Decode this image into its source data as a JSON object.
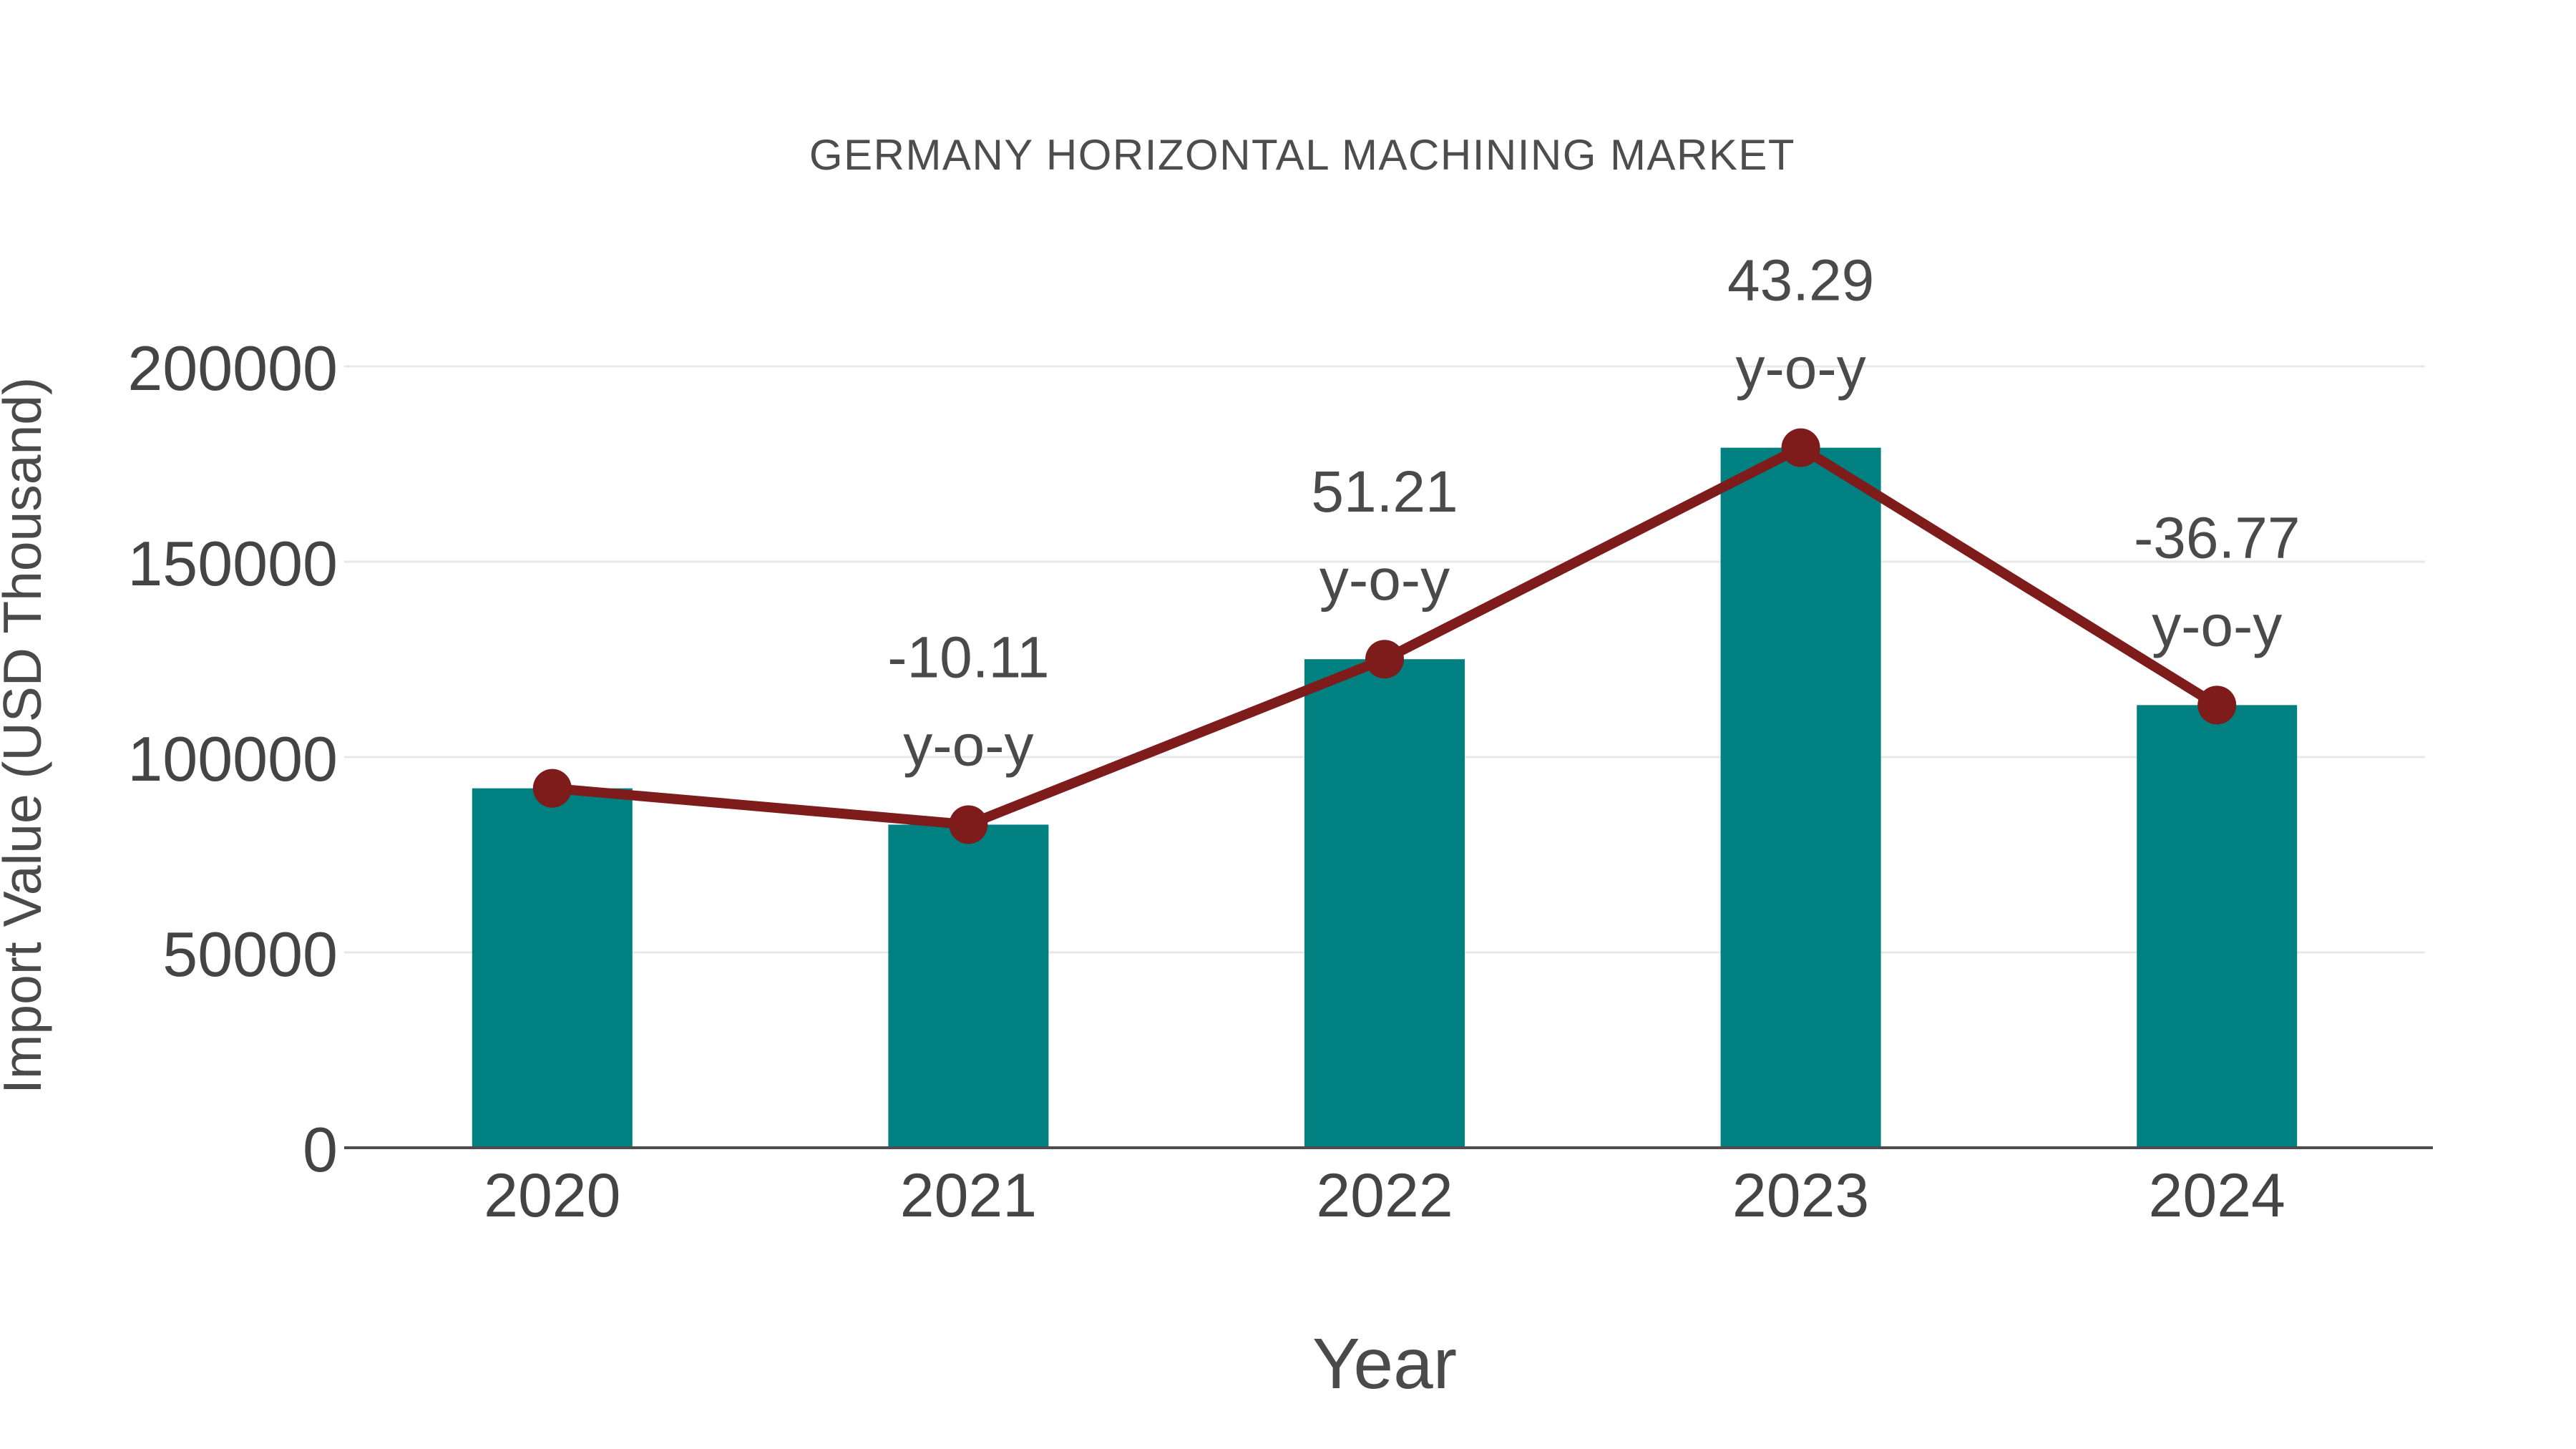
{
  "page": {
    "background": "#ffffff"
  },
  "chart_data": {
    "type": "bar",
    "title": "GERMANY HORIZONTAL MACHINING MARKET",
    "xlabel": "Year",
    "ylabel": "Import Value (USD Thousand)",
    "categories": [
      "2020",
      "2021",
      "2022",
      "2023",
      "2024"
    ],
    "series": [
      {
        "name": "Import Value",
        "type": "bar",
        "color": "#008080",
        "values": [
          92000,
          82700,
          125050,
          179180,
          113300
        ]
      },
      {
        "name": "Year-over-year trend",
        "type": "line",
        "color": "#7e1b1b",
        "values": [
          92000,
          82700,
          125050,
          179180,
          113300
        ]
      }
    ],
    "annotations": [
      {
        "category": "2021",
        "value_label": "-10.11",
        "suffix_label": "y-o-y"
      },
      {
        "category": "2022",
        "value_label": "51.21",
        "suffix_label": "y-o-y"
      },
      {
        "category": "2023",
        "value_label": "43.29",
        "suffix_label": "y-o-y"
      },
      {
        "category": "2024",
        "value_label": "-36.77",
        "suffix_label": "y-o-y"
      }
    ],
    "ylim": [
      0,
      200000
    ],
    "yticks": [
      0,
      50000,
      100000,
      150000,
      200000
    ],
    "ytick_labels": [
      "0",
      "50000",
      "100000",
      "150000",
      "200000"
    ],
    "grid": true,
    "legend_position": "none"
  },
  "style": {
    "bar_color": "#008080",
    "line_color": "#7e1b1b",
    "grid_color": "#e8e8e8",
    "axis_line_color": "#4d4d4d",
    "tick_text_color": "#444444",
    "title_text_color": "#4d4d4d",
    "annotation_text_color": "#4a4a4a"
  }
}
